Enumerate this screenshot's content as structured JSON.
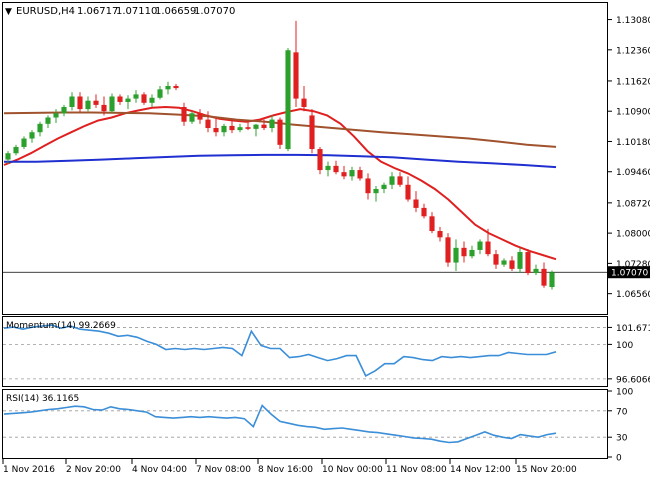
{
  "header": {
    "symbol": "EURUSD,H4",
    "open": "1.06717",
    "high": "1.07110",
    "low": "1.06659",
    "close": "1.07070"
  },
  "colors": {
    "bull": "#2ca02c",
    "bear": "#e02020",
    "sma_fast": "#e02020",
    "sma_mid": "#a0522d",
    "sma_slow": "#1f2fd0",
    "indicator": "#3b8ed8",
    "grid": "#9a9a9a",
    "current_price_bg": "#000000",
    "current_price_text": "#ffffff"
  },
  "chart_data": [
    {
      "type": "candlestick",
      "title": "EURUSD,H4  1.06717 1.07110 1.06659 1.07070",
      "ylim": [
        1.061,
        1.1345
      ],
      "y_ticks": [
        "1.13080",
        "1.12360",
        "1.11620",
        "1.10900",
        "1.10180",
        "1.09460",
        "1.08720",
        "1.08000",
        "1.07280",
        "1.06560"
      ],
      "current_price": "1.07070",
      "current_price_value": 1.0707,
      "x_ticks": [
        "1 Nov 2016",
        "2 Nov 20:00",
        "4 Nov 04:00",
        "7 Nov 08:00",
        "8 Nov 16:00",
        "10 Nov 00:00",
        "11 Nov 08:00",
        "14 Nov 12:00",
        "15 Nov 20:00"
      ],
      "candles": [
        [
          1.0975,
          1.0995,
          1.0965,
          1.099
        ],
        [
          1.099,
          1.101,
          1.0985,
          1.1005
        ],
        [
          1.1005,
          1.103,
          1.1,
          1.1025
        ],
        [
          1.1025,
          1.1045,
          1.1015,
          1.104
        ],
        [
          1.104,
          1.1065,
          1.103,
          1.106
        ],
        [
          1.106,
          1.108,
          1.105,
          1.1075
        ],
        [
          1.1075,
          1.1095,
          1.1062,
          1.1085
        ],
        [
          1.1085,
          1.1105,
          1.1078,
          1.11
        ],
        [
          1.11,
          1.1135,
          1.1092,
          1.1125
        ],
        [
          1.1125,
          1.1135,
          1.1088,
          1.1095
        ],
        [
          1.1095,
          1.1125,
          1.109,
          1.1115
        ],
        [
          1.1115,
          1.113,
          1.1098,
          1.1105
        ],
        [
          1.1105,
          1.1125,
          1.108,
          1.109
        ],
        [
          1.109,
          1.1132,
          1.1085,
          1.1125
        ],
        [
          1.1125,
          1.113,
          1.1105,
          1.1112
        ],
        [
          1.1112,
          1.1128,
          1.1095,
          1.112
        ],
        [
          1.112,
          1.114,
          1.111,
          1.113
        ],
        [
          1.113,
          1.1135,
          1.1105,
          1.111
        ],
        [
          1.111,
          1.113,
          1.11,
          1.1122
        ],
        [
          1.1122,
          1.115,
          1.1118,
          1.1142
        ],
        [
          1.1142,
          1.116,
          1.113,
          1.115
        ],
        [
          1.115,
          1.1155,
          1.114,
          1.1145
        ],
        [
          1.11,
          1.111,
          1.1055,
          1.1065
        ],
        [
          1.1065,
          1.109,
          1.106,
          1.1085
        ],
        [
          1.1085,
          1.1095,
          1.106,
          1.107
        ],
        [
          1.107,
          1.109,
          1.104,
          1.105
        ],
        [
          1.105,
          1.1075,
          1.103,
          1.104
        ],
        [
          1.104,
          1.106,
          1.103,
          1.1055
        ],
        [
          1.1055,
          1.107,
          1.1038,
          1.1045
        ],
        [
          1.1045,
          1.106,
          1.104,
          1.1052
        ],
        [
          1.1052,
          1.1068,
          1.1045,
          1.1048
        ],
        [
          1.1048,
          1.106,
          1.103,
          1.1058
        ],
        [
          1.1058,
          1.107,
          1.1045,
          1.105
        ],
        [
          1.105,
          1.108,
          1.104,
          1.107
        ],
        [
          1.107,
          1.1075,
          1.1,
          1.101
        ],
        [
          1.1,
          1.124,
          1.0995,
          1.1235
        ],
        [
          1.123,
          1.1305,
          1.11,
          1.112
        ],
        [
          1.112,
          1.115,
          1.109,
          1.11
        ],
        [
          1.108,
          1.1095,
          1.099,
          1.1
        ],
        [
          1.1,
          1.1005,
          1.094,
          1.095
        ],
        [
          1.095,
          1.097,
          1.0935,
          1.096
        ],
        [
          1.096,
          1.0972,
          1.094,
          1.0945
        ],
        [
          1.0945,
          1.096,
          1.0928,
          1.0935
        ],
        [
          1.0935,
          1.0958,
          1.0925,
          1.095
        ],
        [
          1.095,
          1.0958,
          1.0925,
          1.093
        ],
        [
          1.093,
          1.0942,
          1.088,
          1.0895
        ],
        [
          1.0895,
          1.0912,
          1.0875,
          1.0905
        ],
        [
          1.0905,
          1.092,
          1.0895,
          1.0915
        ],
        [
          1.0915,
          1.0945,
          1.0905,
          1.0935
        ],
        [
          1.0935,
          1.0945,
          1.091,
          1.0915
        ],
        [
          1.0915,
          1.0935,
          1.0875,
          1.088
        ],
        [
          1.088,
          1.09,
          1.085,
          1.086
        ],
        [
          1.086,
          1.087,
          1.0835,
          1.084
        ],
        [
          1.084,
          1.085,
          1.08,
          1.0805
        ],
        [
          1.0805,
          1.0815,
          1.078,
          1.079
        ],
        [
          1.079,
          1.08,
          1.072,
          1.073
        ],
        [
          1.073,
          1.0785,
          1.071,
          1.0765
        ],
        [
          1.0765,
          1.078,
          1.073,
          1.0745
        ],
        [
          1.0745,
          1.077,
          1.074,
          1.076
        ],
        [
          1.076,
          1.0785,
          1.075,
          1.078
        ],
        [
          1.078,
          1.081,
          1.0745,
          1.075
        ],
        [
          1.075,
          1.076,
          1.0715,
          1.0725
        ],
        [
          1.0725,
          1.074,
          1.072,
          1.0735
        ],
        [
          1.0735,
          1.0745,
          1.071,
          1.0715
        ],
        [
          1.0715,
          1.0765,
          1.0705,
          1.0755
        ],
        [
          1.0755,
          1.0762,
          1.07,
          1.0705
        ],
        [
          1.0705,
          1.0725,
          1.07,
          1.0715
        ],
        [
          1.0715,
          1.073,
          1.067,
          1.0675
        ],
        [
          1.06717,
          1.0711,
          1.06659,
          1.0707
        ]
      ],
      "series": [
        {
          "values": [
            1.0962,
            1.0975,
            1.099,
            1.1008,
            1.1025,
            1.104,
            1.1055,
            1.1068,
            1.1075,
            1.1085,
            1.1092,
            1.1098,
            1.11,
            1.1098,
            1.109,
            1.108,
            1.1072,
            1.1068,
            1.1065,
            1.107,
            1.108,
            1.1088,
            1.1095,
            1.109,
            1.108,
            1.106,
            1.103,
            1.0995,
            1.097,
            1.0955,
            1.0942,
            1.0925,
            1.0905,
            1.088,
            1.085,
            1.082,
            1.08,
            1.0785,
            1.077,
            1.0758,
            1.0748,
            1.0738
          ]
        },
        {
          "values": [
            1.1085,
            1.1086,
            1.1087,
            1.1087,
            1.1086,
            1.1085,
            1.1082,
            1.1078,
            1.107,
            1.1065,
            1.1058,
            1.1052,
            1.1046,
            1.104,
            1.1035,
            1.103,
            1.1025,
            1.1018,
            1.101,
            1.1005
          ]
        },
        {
          "values": [
            1.097,
            1.097,
            1.0972,
            1.0975,
            1.0978,
            1.0981,
            1.0984,
            1.0985,
            1.0986,
            1.0986,
            1.0985,
            1.0983,
            1.098,
            1.0975,
            1.097,
            1.0966,
            1.0962,
            1.0957
          ]
        }
      ]
    },
    {
      "type": "line",
      "title": "Momentum(14) 99.2669",
      "ylim": [
        96.0,
        102.6
      ],
      "y_ticks": [
        "101.6718",
        "100",
        "96.6066"
      ],
      "grid_levels": [
        101.6718,
        100,
        96.6066
      ],
      "series": [
        {
          "name": "Momentum(14)",
          "values": [
            101.6,
            101.7,
            101.5,
            101.7,
            101.8,
            101.9,
            101.6,
            101.8,
            101.5,
            101.4,
            101.3,
            101.1,
            100.8,
            100.9,
            100.7,
            100.3,
            100.0,
            99.5,
            99.6,
            99.5,
            99.6,
            99.5,
            99.6,
            99.7,
            99.6,
            98.9,
            101.3,
            99.9,
            99.6,
            99.6,
            98.7,
            98.8,
            99.0,
            98.7,
            98.4,
            98.6,
            98.9,
            98.9,
            96.9,
            97.4,
            98.1,
            98.1,
            98.8,
            98.7,
            98.5,
            98.4,
            98.8,
            98.7,
            98.8,
            98.7,
            98.8,
            98.9,
            98.9,
            99.2,
            99.1,
            99.0,
            99.0,
            99.0,
            99.27
          ]
        }
      ]
    },
    {
      "type": "line",
      "title": "RSI(14) 36.1165",
      "ylim": [
        0,
        100
      ],
      "y_ticks": [
        "100",
        "70",
        "30",
        "0"
      ],
      "grid_levels": [
        70,
        30
      ],
      "series": [
        {
          "name": "RSI(14)",
          "values": [
            65,
            66,
            67,
            68,
            70,
            72,
            73,
            75,
            77,
            76,
            72,
            71,
            76,
            73,
            72,
            70,
            68,
            61,
            60,
            59,
            60,
            61,
            60,
            61,
            60,
            59,
            60,
            58,
            46,
            78,
            65,
            54,
            51,
            48,
            46,
            45,
            42,
            43,
            44,
            42,
            40,
            38,
            37,
            35,
            33,
            31,
            29,
            28,
            27,
            24,
            22,
            23,
            28,
            33,
            38,
            33,
            30,
            28,
            34,
            32,
            30,
            34,
            36
          ]
        }
      ]
    }
  ]
}
